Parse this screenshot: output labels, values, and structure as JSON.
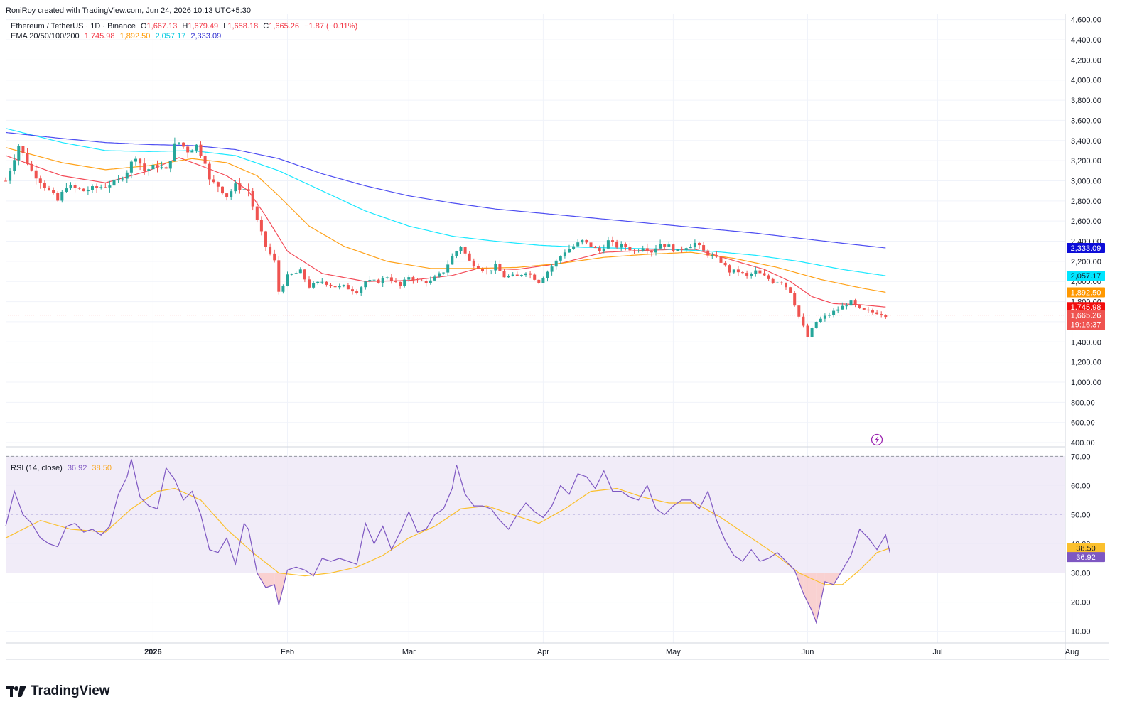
{
  "caption": "RoniRoy created with TradingView.com, Jun 24, 2026 10:13 UTC+5:30",
  "symbol": {
    "name": "Ethereum / TetherUS · 1D · Binance",
    "o_label": "O",
    "o": "1,667.13",
    "h_label": "H",
    "h": "1,679.49",
    "l_label": "L",
    "l": "1,658.18",
    "c_label": "C",
    "c": "1,665.26",
    "change": "−1.87 (−0.11%)"
  },
  "ema": {
    "label": "EMA 20/50/100/200",
    "v20": "1,745.98",
    "v50": "1,892.50",
    "v100": "2,057.17",
    "v200": "2,333.09"
  },
  "rsi": {
    "label": "RSI (14, close)",
    "value": "36.92",
    "ma": "38.50"
  },
  "badges": {
    "ema200": "2,333.09",
    "ema100": "2,057.17",
    "ema50": "1,892.50",
    "ema20": "1,745.98",
    "price": "1,665.26",
    "countdown": "19:16:37",
    "rsi_ma": "38.50",
    "rsi": "36.92"
  },
  "logo_text": "TradingView",
  "colors": {
    "up": "#26a69a",
    "down": "#ef5350",
    "ema20": "#f23645",
    "ema50": "#ff9800",
    "ema100": "#00e5ff",
    "ema200": "#3a3af0",
    "rsi": "#7e57c2",
    "rsi_ma": "#fbc02d",
    "rsi_band": "#ede7f6"
  },
  "chart_data": {
    "type": "candlestick",
    "price_axis": {
      "ticks": [
        "4,600.00",
        "4,400.00",
        "4,200.00",
        "4,000.00",
        "3,800.00",
        "3,600.00",
        "3,400.00",
        "3,200.00",
        "3,000.00",
        "2,800.00",
        "2,600.00",
        "2,400.00",
        "2,200.00",
        "2,000.00",
        "1,800.00",
        "1,600.00",
        "1,400.00",
        "1,200.00",
        "1,000.00",
        "800.00",
        "600.00",
        "400.00"
      ],
      "range": [
        365,
        4640
      ]
    },
    "rsi_axis": {
      "ticks": [
        "70.00",
        "60.00",
        "50.00",
        "40.00",
        "30.00",
        "20.00",
        "10.00"
      ],
      "range": [
        6.5,
        73
      ],
      "band": [
        30,
        70
      ]
    },
    "x_axis": {
      "labels": [
        "2026",
        "Feb",
        "Mar",
        "Apr",
        "May",
        "Jun",
        "Jul",
        "Aug"
      ],
      "label_days": [
        11,
        42,
        70,
        101,
        131,
        162,
        192,
        223
      ],
      "bar_start_day": -23,
      "bar_end_day": 174
    },
    "price_anchors": [
      [
        -23,
        3000
      ],
      [
        -20,
        3350
      ],
      [
        -17,
        3100
      ],
      [
        -13,
        2900
      ],
      [
        -11,
        2800
      ],
      [
        -9,
        2950
      ],
      [
        -5,
        2900
      ],
      [
        0,
        2950
      ],
      [
        3,
        3000
      ],
      [
        5,
        3100
      ],
      [
        7,
        3250
      ],
      [
        9,
        3100
      ],
      [
        12,
        3150
      ],
      [
        14,
        3100
      ],
      [
        16,
        3350
      ],
      [
        17,
        3380
      ],
      [
        19,
        3300
      ],
      [
        21,
        3350
      ],
      [
        23,
        3200
      ],
      [
        24,
        3000
      ],
      [
        26,
        2950
      ],
      [
        28,
        2850
      ],
      [
        30,
        2950
      ],
      [
        33,
        2900
      ],
      [
        35,
        2600
      ],
      [
        37,
        2350
      ],
      [
        39,
        2200
      ],
      [
        40,
        1900
      ],
      [
        42,
        2050
      ],
      [
        45,
        2100
      ],
      [
        47,
        1950
      ],
      [
        50,
        2000
      ],
      [
        53,
        1950
      ],
      [
        55,
        1950
      ],
      [
        58,
        1900
      ],
      [
        60,
        2000
      ],
      [
        63,
        2000
      ],
      [
        65,
        2050
      ],
      [
        68,
        1950
      ],
      [
        70,
        2050
      ],
      [
        72,
        2000
      ],
      [
        75,
        2000
      ],
      [
        78,
        2100
      ],
      [
        80,
        2250
      ],
      [
        82,
        2350
      ],
      [
        84,
        2200
      ],
      [
        86,
        2150
      ],
      [
        88,
        2100
      ],
      [
        90,
        2150
      ],
      [
        92,
        2050
      ],
      [
        95,
        2050
      ],
      [
        97,
        2100
      ],
      [
        100,
        2000
      ],
      [
        102,
        2100
      ],
      [
        104,
        2200
      ],
      [
        106,
        2300
      ],
      [
        108,
        2350
      ],
      [
        110,
        2400
      ],
      [
        112,
        2350
      ],
      [
        114,
        2300
      ],
      [
        116,
        2400
      ],
      [
        118,
        2350
      ],
      [
        120,
        2350
      ],
      [
        122,
        2300
      ],
      [
        124,
        2350
      ],
      [
        126,
        2300
      ],
      [
        128,
        2380
      ],
      [
        130,
        2350
      ],
      [
        132,
        2300
      ],
      [
        134,
        2350
      ],
      [
        136,
        2380
      ],
      [
        138,
        2300
      ],
      [
        140,
        2250
      ],
      [
        142,
        2200
      ],
      [
        144,
        2100
      ],
      [
        146,
        2100
      ],
      [
        148,
        2050
      ],
      [
        150,
        2100
      ],
      [
        152,
        2050
      ],
      [
        154,
        2000
      ],
      [
        156,
        2000
      ],
      [
        158,
        1900
      ],
      [
        160,
        1650
      ],
      [
        161,
        1550
      ],
      [
        162,
        1450
      ],
      [
        164,
        1600
      ],
      [
        166,
        1650
      ],
      [
        168,
        1700
      ],
      [
        170,
        1750
      ],
      [
        172,
        1800
      ],
      [
        174,
        1720
      ],
      [
        176,
        1700
      ],
      [
        178,
        1690
      ],
      [
        179,
        1680
      ],
      [
        180,
        1665
      ]
    ],
    "ema": {
      "ema20": [
        [
          -23,
          3250
        ],
        [
          -10,
          3050
        ],
        [
          0,
          2980
        ],
        [
          10,
          3100
        ],
        [
          17,
          3230
        ],
        [
          22,
          3150
        ],
        [
          28,
          3050
        ],
        [
          33,
          2900
        ],
        [
          37,
          2650
        ],
        [
          42,
          2300
        ],
        [
          50,
          2080
        ],
        [
          60,
          2000
        ],
        [
          70,
          2010
        ],
        [
          80,
          2060
        ],
        [
          86,
          2130
        ],
        [
          95,
          2120
        ],
        [
          105,
          2180
        ],
        [
          115,
          2290
        ],
        [
          125,
          2310
        ],
        [
          132,
          2320
        ],
        [
          136,
          2320
        ],
        [
          144,
          2220
        ],
        [
          152,
          2120
        ],
        [
          158,
          2000
        ],
        [
          163,
          1850
        ],
        [
          168,
          1780
        ],
        [
          174,
          1770
        ],
        [
          180,
          1745.98
        ]
      ],
      "ema50": [
        [
          -23,
          3330
        ],
        [
          -10,
          3180
        ],
        [
          0,
          3110
        ],
        [
          10,
          3150
        ],
        [
          20,
          3220
        ],
        [
          28,
          3180
        ],
        [
          35,
          3050
        ],
        [
          40,
          2850
        ],
        [
          47,
          2550
        ],
        [
          55,
          2350
        ],
        [
          65,
          2200
        ],
        [
          75,
          2130
        ],
        [
          85,
          2130
        ],
        [
          95,
          2140
        ],
        [
          105,
          2180
        ],
        [
          115,
          2240
        ],
        [
          125,
          2270
        ],
        [
          135,
          2290
        ],
        [
          145,
          2230
        ],
        [
          155,
          2140
        ],
        [
          165,
          2020
        ],
        [
          175,
          1930
        ],
        [
          180,
          1892.5
        ]
      ],
      "ema100": [
        [
          -23,
          3520
        ],
        [
          -10,
          3380
        ],
        [
          0,
          3300
        ],
        [
          10,
          3290
        ],
        [
          20,
          3300
        ],
        [
          30,
          3250
        ],
        [
          40,
          3100
        ],
        [
          50,
          2900
        ],
        [
          60,
          2700
        ],
        [
          70,
          2550
        ],
        [
          80,
          2450
        ],
        [
          90,
          2400
        ],
        [
          100,
          2360
        ],
        [
          110,
          2340
        ],
        [
          120,
          2330
        ],
        [
          130,
          2320
        ],
        [
          140,
          2300
        ],
        [
          150,
          2260
        ],
        [
          160,
          2200
        ],
        [
          170,
          2120
        ],
        [
          180,
          2057.17
        ]
      ],
      "ema200": [
        [
          -23,
          3480
        ],
        [
          -10,
          3420
        ],
        [
          0,
          3380
        ],
        [
          10,
          3360
        ],
        [
          20,
          3350
        ],
        [
          30,
          3310
        ],
        [
          40,
          3220
        ],
        [
          50,
          3070
        ],
        [
          60,
          2950
        ],
        [
          70,
          2850
        ],
        [
          80,
          2780
        ],
        [
          90,
          2720
        ],
        [
          100,
          2680
        ],
        [
          110,
          2640
        ],
        [
          120,
          2600
        ],
        [
          130,
          2560
        ],
        [
          140,
          2520
        ],
        [
          150,
          2480
        ],
        [
          160,
          2430
        ],
        [
          170,
          2380
        ],
        [
          180,
          2333.09
        ]
      ]
    },
    "rsi_series": [
      [
        -23,
        46
      ],
      [
        -21,
        58
      ],
      [
        -19,
        50
      ],
      [
        -17,
        47
      ],
      [
        -15,
        42
      ],
      [
        -13,
        40
      ],
      [
        -11,
        39
      ],
      [
        -9,
        46
      ],
      [
        -7,
        47
      ],
      [
        -5,
        44
      ],
      [
        -3,
        45
      ],
      [
        -1,
        43
      ],
      [
        1,
        46
      ],
      [
        3,
        57
      ],
      [
        5,
        63
      ],
      [
        6,
        69
      ],
      [
        8,
        56
      ],
      [
        10,
        53
      ],
      [
        12,
        52
      ],
      [
        14,
        66
      ],
      [
        16,
        62
      ],
      [
        18,
        55
      ],
      [
        20,
        58
      ],
      [
        22,
        50
      ],
      [
        24,
        38
      ],
      [
        26,
        37
      ],
      [
        28,
        42
      ],
      [
        30,
        33
      ],
      [
        32,
        47
      ],
      [
        33,
        45
      ],
      [
        35,
        30
      ],
      [
        37,
        25
      ],
      [
        39,
        26
      ],
      [
        40,
        19
      ],
      [
        42,
        31
      ],
      [
        44,
        32
      ],
      [
        46,
        31
      ],
      [
        48,
        29
      ],
      [
        50,
        35
      ],
      [
        52,
        34
      ],
      [
        54,
        35
      ],
      [
        56,
        34
      ],
      [
        58,
        33
      ],
      [
        60,
        47
      ],
      [
        62,
        40
      ],
      [
        64,
        46
      ],
      [
        66,
        38
      ],
      [
        68,
        44
      ],
      [
        70,
        51
      ],
      [
        72,
        44
      ],
      [
        74,
        45
      ],
      [
        76,
        50
      ],
      [
        78,
        52
      ],
      [
        80,
        59
      ],
      [
        81,
        67
      ],
      [
        83,
        57
      ],
      [
        85,
        53
      ],
      [
        87,
        53
      ],
      [
        89,
        52
      ],
      [
        91,
        48
      ],
      [
        93,
        45
      ],
      [
        95,
        50
      ],
      [
        97,
        54
      ],
      [
        99,
        51
      ],
      [
        101,
        49
      ],
      [
        103,
        53
      ],
      [
        105,
        60
      ],
      [
        107,
        57
      ],
      [
        109,
        64
      ],
      [
        111,
        63
      ],
      [
        113,
        59
      ],
      [
        115,
        65
      ],
      [
        117,
        58
      ],
      [
        119,
        58
      ],
      [
        121,
        56
      ],
      [
        123,
        55
      ],
      [
        125,
        60
      ],
      [
        127,
        52
      ],
      [
        129,
        50
      ],
      [
        131,
        53
      ],
      [
        133,
        55
      ],
      [
        135,
        55
      ],
      [
        137,
        52
      ],
      [
        139,
        58
      ],
      [
        141,
        48
      ],
      [
        143,
        41
      ],
      [
        145,
        36
      ],
      [
        147,
        34
      ],
      [
        149,
        38
      ],
      [
        151,
        34
      ],
      [
        153,
        35
      ],
      [
        155,
        37
      ],
      [
        157,
        34
      ],
      [
        159,
        31
      ],
      [
        161,
        23
      ],
      [
        163,
        17
      ],
      [
        164,
        13
      ],
      [
        166,
        27
      ],
      [
        168,
        26
      ],
      [
        170,
        31
      ],
      [
        172,
        36
      ],
      [
        174,
        45
      ],
      [
        176,
        42
      ],
      [
        178,
        38
      ],
      [
        180,
        43
      ],
      [
        181,
        36.92
      ]
    ],
    "rsi_ma_series": [
      [
        -23,
        42
      ],
      [
        -15,
        48
      ],
      [
        -8,
        45
      ],
      [
        0,
        44
      ],
      [
        6,
        52
      ],
      [
        12,
        58
      ],
      [
        16,
        59
      ],
      [
        22,
        55
      ],
      [
        28,
        45
      ],
      [
        34,
        37
      ],
      [
        40,
        30
      ],
      [
        46,
        29
      ],
      [
        52,
        30
      ],
      [
        58,
        32
      ],
      [
        64,
        36
      ],
      [
        70,
        42
      ],
      [
        76,
        46
      ],
      [
        82,
        52
      ],
      [
        88,
        53
      ],
      [
        94,
        50
      ],
      [
        100,
        47
      ],
      [
        106,
        52
      ],
      [
        112,
        58
      ],
      [
        118,
        59
      ],
      [
        124,
        56
      ],
      [
        130,
        54
      ],
      [
        136,
        54
      ],
      [
        142,
        49
      ],
      [
        148,
        43
      ],
      [
        154,
        37
      ],
      [
        160,
        30
      ],
      [
        166,
        26
      ],
      [
        170,
        26
      ],
      [
        174,
        31
      ],
      [
        178,
        37
      ],
      [
        181,
        38.5
      ]
    ]
  }
}
